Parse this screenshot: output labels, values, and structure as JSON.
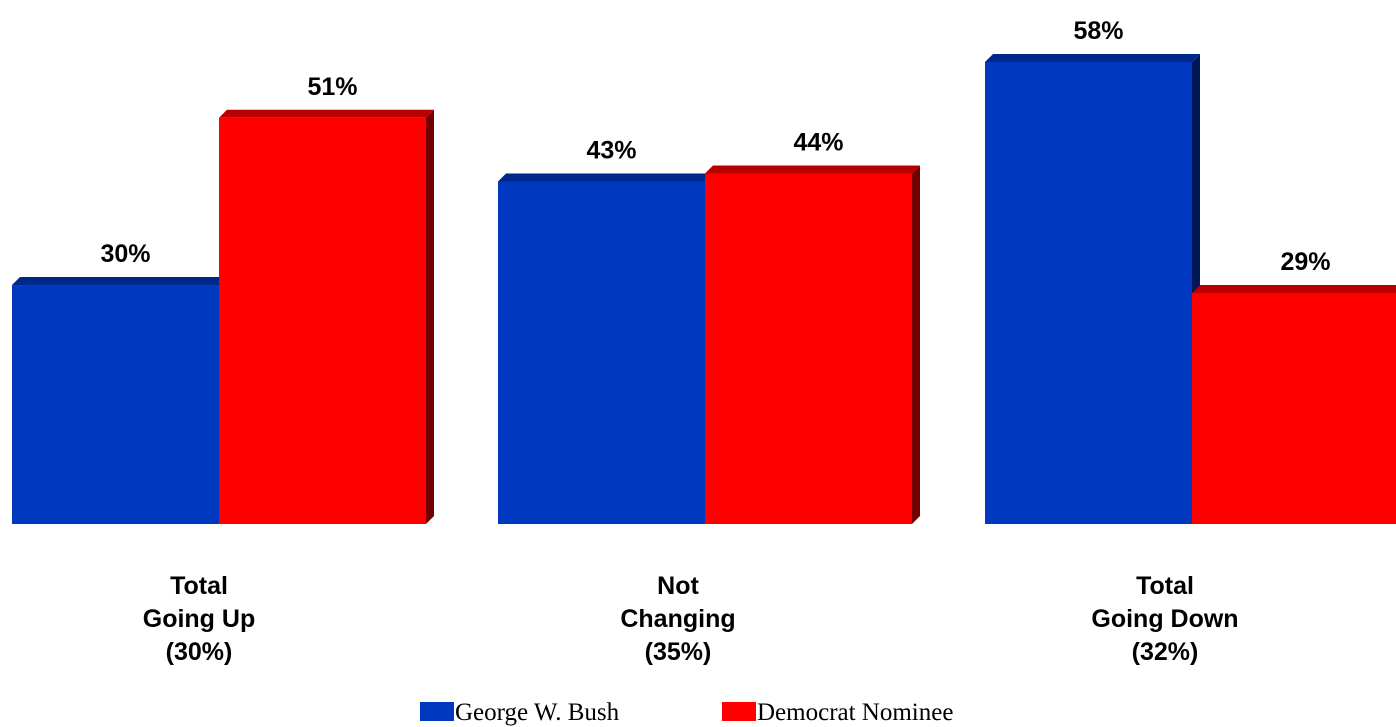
{
  "chart_data": {
    "type": "bar",
    "categories": [
      [
        "Total",
        "Going Up",
        "(30%)"
      ],
      [
        "Not",
        "Changing",
        "(35%)"
      ],
      [
        "Total",
        "Going Down",
        "(32%)"
      ]
    ],
    "series": [
      {
        "name": "George W. Bush",
        "color": "#0038C0",
        "values": [
          30,
          43,
          58
        ],
        "labels": [
          "30%",
          "43%",
          "58%"
        ]
      },
      {
        "name": "Democrat Nominee",
        "color": "#FF0000",
        "values": [
          51,
          44,
          29
        ],
        "labels": [
          "51%",
          "44%",
          "29%"
        ]
      }
    ],
    "ylim": [
      0,
      58
    ],
    "grid": false,
    "legend": "bottom-center",
    "title": "",
    "xlabel": "",
    "ylabel": ""
  }
}
